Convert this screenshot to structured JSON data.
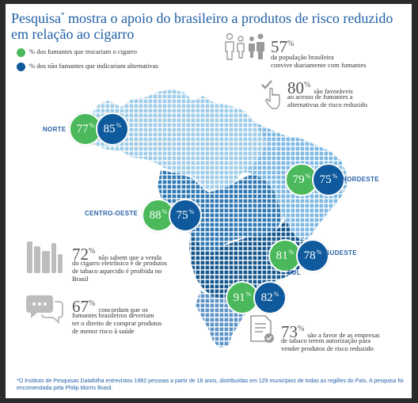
{
  "title": {
    "part1": "Pesquisa",
    "mark": "*",
    "part2": " mostra o apoio do brasileiro a produtos de risco reduzido em relação ao cigarro"
  },
  "legend": [
    {
      "label": "% dos fumantes que trocariam o cigarro",
      "color": "#4bb95b"
    },
    {
      "label": "% dos não fumantes que indicariam alternativas",
      "color": "#0f5a9c"
    }
  ],
  "chart_data": {
    "type": "map",
    "series": [
      {
        "name": "% dos fumantes que trocariam o cigarro",
        "color": "#4bb95b"
      },
      {
        "name": "% dos não fumantes que indicariam alternativas",
        "color": "#0f5a9c"
      }
    ],
    "regions": [
      {
        "name": "NORTE",
        "fumantes": "77%",
        "nao_fumantes": "85%"
      },
      {
        "name": "NORDESTE",
        "fumantes": "79%",
        "nao_fumantes": "75%"
      },
      {
        "name": "CENTRO-OESTE",
        "fumantes": "88%",
        "nao_fumantes": "75%"
      },
      {
        "name": "SUDESTE",
        "fumantes": "81%",
        "nao_fumantes": "78%"
      },
      {
        "name": "SUL",
        "fumantes": "91%",
        "nao_fumantes": "82%"
      }
    ]
  },
  "stats": [
    {
      "value": "57",
      "unit": "%",
      "text": [
        "da população brasileira",
        "convive diariamente com fumantes"
      ],
      "icon": "people-icon"
    },
    {
      "value": "80",
      "unit": "%",
      "text": [
        "são favoráveis",
        "ao acesso de fumantes a",
        "alternativas de risco reduzido"
      ],
      "icon": "hand-check-icon"
    },
    {
      "value": "72",
      "unit": "%",
      "text": [
        "não sabem que a venda",
        "do cigarro eletrônico e de produtos",
        "de tabaco aquecido é proibida no",
        "Brasil"
      ],
      "icon": "devices-icon"
    },
    {
      "value": "67",
      "unit": "%",
      "text": [
        "concordam que os",
        "fumantes brasileiros deveriam",
        "ter o direito de comprar produtos",
        "de menor risco à saúde"
      ],
      "icon": "speech-bubbles-icon"
    },
    {
      "value": "73",
      "unit": "%",
      "text": [
        "são a favor de as empresas",
        "de tabaco terem autorização para",
        "vender produtos de risco reduzido"
      ],
      "icon": "document-check-icon"
    }
  ],
  "footnote": "*O Instituto de Pesquisas Datafolha entrevistou 1982 pessoas a partir de 18 anos, distribuídas em 129 municípios de todas as regiões do País. A pesquisa foi encomendada pela Philip Morris Brasil.",
  "colors": {
    "title": "#1f5fa6",
    "green": "#4bb95b",
    "blue": "#0f5a9c",
    "norte": "#9fcce8",
    "nordeste": "#7db9e2",
    "centro_oeste": "#2e79b5",
    "sudeste": "#15578f",
    "sul": "#5e93c8"
  }
}
